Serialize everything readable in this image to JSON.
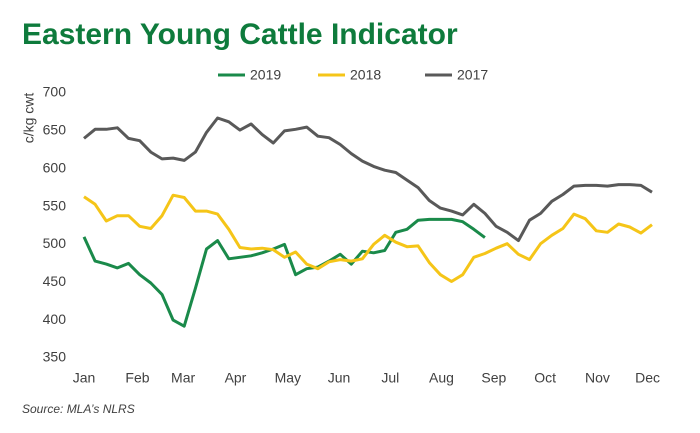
{
  "chart_data": {
    "type": "line",
    "title": "Eastern Young Cattle Indicator",
    "y_label": "c/kg cwt",
    "source": "Source: MLA’s NLRS",
    "x": [
      1,
      2,
      3,
      4,
      5,
      6,
      7,
      8,
      9,
      10,
      11,
      12,
      13,
      14,
      15,
      16,
      17,
      18,
      19,
      20,
      21,
      22,
      23,
      24,
      25,
      26,
      27,
      28,
      29,
      30,
      31,
      32,
      33,
      34,
      35,
      36,
      37,
      38,
      39,
      40,
      41,
      42,
      43,
      44,
      45,
      46,
      47,
      48,
      49,
      50,
      51,
      52
    ],
    "xlim": [
      1,
      52
    ],
    "xticks": [
      {
        "value": 1,
        "label": "Jan"
      },
      {
        "value": 5.8,
        "label": "Feb"
      },
      {
        "value": 9.9,
        "label": "Mar"
      },
      {
        "value": 14.6,
        "label": "Apr"
      },
      {
        "value": 19.3,
        "label": "May"
      },
      {
        "value": 23.9,
        "label": "Jun"
      },
      {
        "value": 28.5,
        "label": "Jul"
      },
      {
        "value": 33.1,
        "label": "Aug"
      },
      {
        "value": 37.8,
        "label": "Sep"
      },
      {
        "value": 42.4,
        "label": "Oct"
      },
      {
        "value": 47.1,
        "label": "Nov"
      },
      {
        "value": 51.6,
        "label": "Dec"
      }
    ],
    "ylim": [
      350,
      700
    ],
    "yticks": [
      350,
      400,
      450,
      500,
      550,
      600,
      650,
      700
    ],
    "legend": "top",
    "series": [
      {
        "name": "2019",
        "color": "#1a8a4a",
        "values": [
          510,
          478,
          474,
          469,
          475,
          460,
          449,
          434,
          400,
          392,
          442,
          494,
          505,
          481,
          483,
          485,
          489,
          494,
          500,
          460,
          468,
          470,
          478,
          487,
          474,
          491,
          489,
          492,
          516,
          520,
          532,
          533,
          533,
          533,
          530,
          520,
          509,
          null,
          null,
          null,
          null,
          null,
          null,
          null,
          null,
          null,
          null,
          null,
          null,
          null,
          null,
          null
        ]
      },
      {
        "name": "2018",
        "color": "#f5c518",
        "values": [
          563,
          553,
          531,
          538,
          538,
          524,
          521,
          538,
          565,
          562,
          544,
          544,
          540,
          520,
          496,
          494,
          495,
          493,
          483,
          490,
          474,
          468,
          477,
          480,
          478,
          481,
          500,
          512,
          503,
          497,
          498,
          476,
          460,
          451,
          460,
          483,
          488,
          495,
          501,
          487,
          480,
          501,
          512,
          521,
          540,
          534,
          518,
          516,
          527,
          523,
          515,
          526
        ]
      },
      {
        "name": "2017",
        "color": "#595959",
        "values": [
          640,
          652,
          652,
          654,
          640,
          637,
          622,
          613,
          614,
          611,
          622,
          648,
          667,
          662,
          651,
          659,
          645,
          634,
          650,
          652,
          655,
          643,
          641,
          632,
          620,
          610,
          603,
          598,
          595,
          585,
          575,
          558,
          548,
          544,
          539,
          553,
          541,
          524,
          516,
          505,
          532,
          541,
          557,
          566,
          577,
          578,
          578,
          577,
          579,
          579,
          578,
          569
        ]
      }
    ]
  }
}
